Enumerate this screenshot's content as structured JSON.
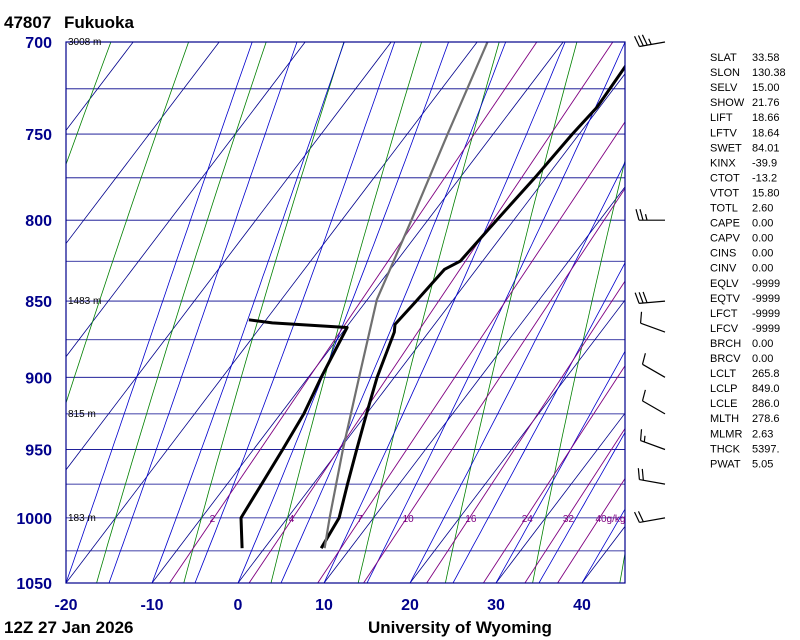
{
  "header": {
    "station_id": "47807",
    "station_name": "Fukuoka"
  },
  "footer": {
    "time": "12Z 27 Jan 2026",
    "source": "University of Wyoming"
  },
  "colors": {
    "frame": "#00008b",
    "grid": "#00008b",
    "isotherm": "#00008b",
    "dry_adiabat": "#008000",
    "moist_adiabat": "#0000cd",
    "mixing_ratio": "#800080",
    "temperature": "#000000",
    "dewpoint": "#000000",
    "parcel": "#707070",
    "tick_labels": "#00008b"
  },
  "chart_data": {
    "type": "line",
    "xlabel": "",
    "ylabel": "",
    "xlim": [
      -20,
      45
    ],
    "ylim": [
      1050,
      700
    ],
    "y_scale": "log",
    "pressure_ticks": [
      700,
      750,
      800,
      850,
      900,
      950,
      1000,
      1050
    ],
    "temperature_ticks": [
      -20,
      -10,
      0,
      10,
      20,
      30,
      40
    ],
    "height_labels": [
      {
        "p": 700,
        "label": "3008 m"
      },
      {
        "p": 850,
        "label": "1483 m"
      },
      {
        "p": 925,
        "label": "815 m"
      },
      {
        "p": 1000,
        "label": "183 m"
      }
    ],
    "mixing_ratio_labels": [
      "2",
      "4",
      "7",
      "10",
      "16",
      "24",
      "32",
      "40g/kg"
    ],
    "series": [
      {
        "line": "temperature",
        "points": [
          {
            "p": 1023,
            "t": 6.6
          },
          {
            "p": 1000,
            "t": 6.0
          },
          {
            "p": 975,
            "t": 4.0
          },
          {
            "p": 950,
            "t": 2.0
          },
          {
            "p": 925,
            "t": 0.0
          },
          {
            "p": 900,
            "t": -2.0
          },
          {
            "p": 870,
            "t": -4.0
          },
          {
            "p": 865,
            "t": -4.6
          },
          {
            "p": 850,
            "t": -4.2
          },
          {
            "p": 830,
            "t": -3.7
          },
          {
            "p": 825,
            "t": -2.6
          },
          {
            "p": 800,
            "t": -2.0
          },
          {
            "p": 775,
            "t": -1.3
          },
          {
            "p": 750,
            "t": -0.8
          },
          {
            "p": 735,
            "t": -0.3
          },
          {
            "p": 700,
            "t": -0.8
          }
        ]
      },
      {
        "line": "dewpoint",
        "points": [
          {
            "p": 1023,
            "t": -2.6
          },
          {
            "p": 1000,
            "t": -5.4
          },
          {
            "p": 950,
            "t": -6.6
          },
          {
            "p": 925,
            "t": -7.3
          },
          {
            "p": 900,
            "t": -8.5
          },
          {
            "p": 867,
            "t": -9.9
          },
          {
            "p": 864,
            "t": -19.0
          },
          {
            "p": 862,
            "t": -22.0
          }
        ]
      },
      {
        "line": "parcel",
        "points": [
          {
            "p": 1023,
            "t": 7.0
          },
          {
            "p": 1000,
            "t": 4.9
          },
          {
            "p": 950,
            "t": 0.4
          },
          {
            "p": 900,
            "t": -4.1
          },
          {
            "p": 849,
            "t": -8.9
          },
          {
            "p": 800,
            "t": -11.9
          },
          {
            "p": 750,
            "t": -15.3
          },
          {
            "p": 700,
            "t": -18.8
          }
        ]
      }
    ],
    "wind_barbs": [
      {
        "p": 700,
        "speed_kt": 35,
        "dir": 260
      },
      {
        "p": 800,
        "speed_kt": 25,
        "dir": 270
      },
      {
        "p": 850,
        "speed_kt": 30,
        "dir": 265
      },
      {
        "p": 870,
        "speed_kt": 10,
        "dir": 290
      },
      {
        "p": 900,
        "speed_kt": 10,
        "dir": 300
      },
      {
        "p": 925,
        "speed_kt": 10,
        "dir": 300
      },
      {
        "p": 950,
        "speed_kt": 15,
        "dir": 290
      },
      {
        "p": 975,
        "speed_kt": 20,
        "dir": 280
      },
      {
        "p": 1000,
        "speed_kt": 20,
        "dir": 260
      }
    ]
  },
  "indices": [
    {
      "name": "SLAT",
      "value": "33.58"
    },
    {
      "name": "SLON",
      "value": "130.38"
    },
    {
      "name": "SELV",
      "value": "15.00"
    },
    {
      "name": "SHOW",
      "value": "21.76"
    },
    {
      "name": "LIFT",
      "value": "18.66"
    },
    {
      "name": "LFTV",
      "value": "18.64"
    },
    {
      "name": "SWET",
      "value": "84.01"
    },
    {
      "name": "KINX",
      "value": "-39.9"
    },
    {
      "name": "CTOT",
      "value": "-13.2"
    },
    {
      "name": "VTOT",
      "value": "15.80"
    },
    {
      "name": "TOTL",
      "value": "2.60"
    },
    {
      "name": "CAPE",
      "value": "0.00"
    },
    {
      "name": "CAPV",
      "value": "0.00"
    },
    {
      "name": "CINS",
      "value": "0.00"
    },
    {
      "name": "CINV",
      "value": "0.00"
    },
    {
      "name": "EQLV",
      "value": "-9999"
    },
    {
      "name": "EQTV",
      "value": "-9999"
    },
    {
      "name": "LFCT",
      "value": "-9999"
    },
    {
      "name": "LFCV",
      "value": "-9999"
    },
    {
      "name": "BRCH",
      "value": "0.00"
    },
    {
      "name": "BRCV",
      "value": "0.00"
    },
    {
      "name": "LCLT",
      "value": "265.8"
    },
    {
      "name": "LCLP",
      "value": "849.0"
    },
    {
      "name": "LCLE",
      "value": "286.0"
    },
    {
      "name": "MLTH",
      "value": "278.6"
    },
    {
      "name": "MLMR",
      "value": "2.63"
    },
    {
      "name": "THCK",
      "value": "5397."
    },
    {
      "name": "PWAT",
      "value": "5.05"
    }
  ]
}
